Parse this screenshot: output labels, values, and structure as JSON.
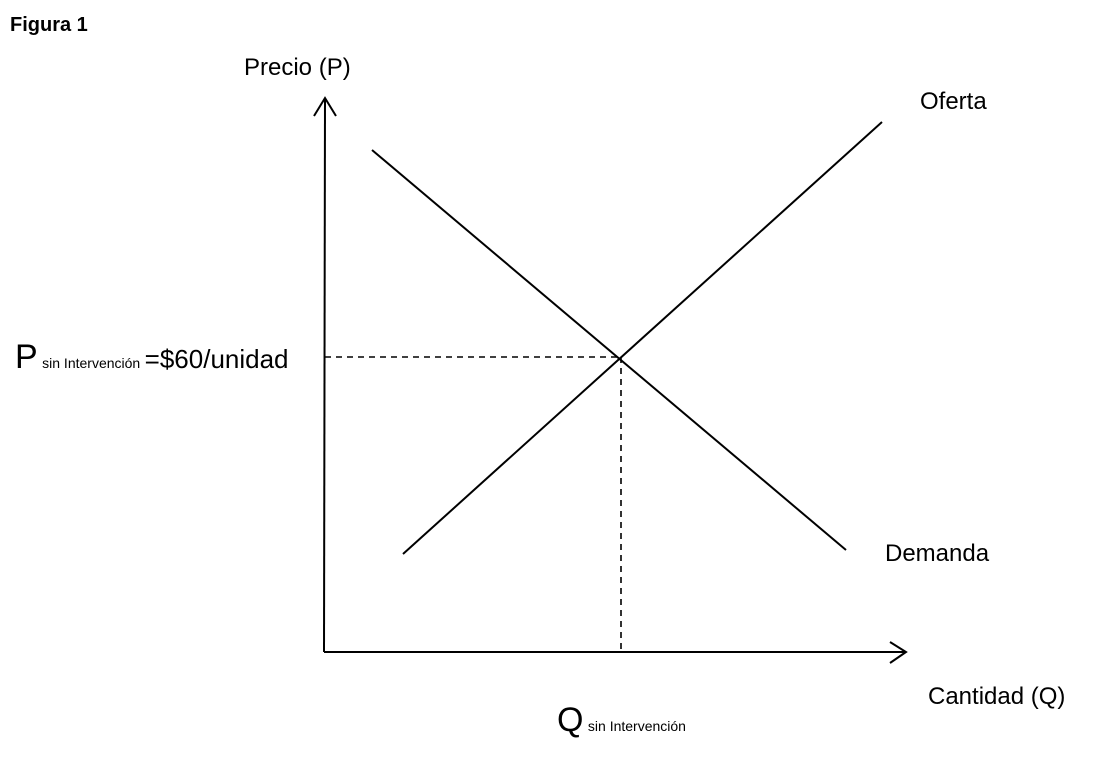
{
  "figure": {
    "title": "Figura 1"
  },
  "axes": {
    "y_label": "Precio (P)",
    "x_label": "Cantidad (Q)"
  },
  "curves": {
    "supply_label": "Oferta",
    "demand_label": "Demanda"
  },
  "equilibrium": {
    "price_symbol": "P",
    "price_subscript": "sin Intervención",
    "price_value": "=$60/unidad",
    "quantity_symbol": "Q",
    "quantity_subscript": "sin Intervención"
  },
  "colors": {
    "line": "#000000",
    "background": "#ffffff"
  }
}
